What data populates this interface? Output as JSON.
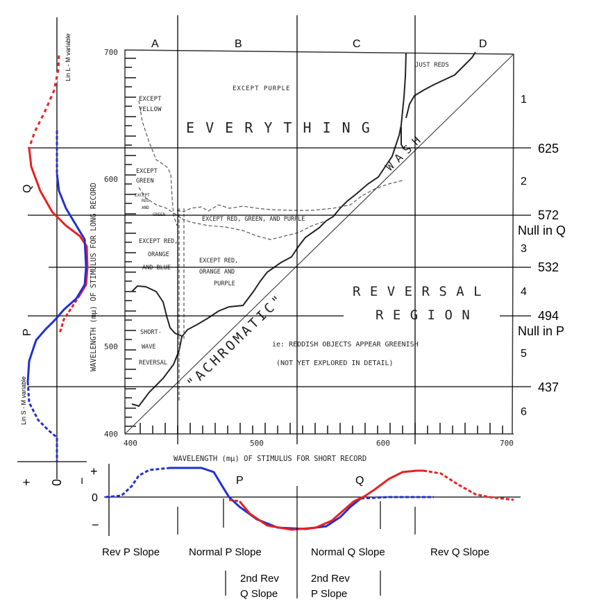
{
  "column_labels": [
    "A",
    "B",
    "C",
    "D"
  ],
  "row_numbers": [
    "1",
    "2",
    "3",
    "4",
    "5",
    "6"
  ],
  "boundaries": [
    {
      "value": "625",
      "note": ""
    },
    {
      "value": "572",
      "note": "Null in Q"
    },
    {
      "value": "532",
      "note": ""
    },
    {
      "value": "494",
      "note": "Null in P"
    },
    {
      "value": "437",
      "note": ""
    }
  ],
  "plot": {
    "xlabel": "WAVELENGTH (mμ) OF STIMULUS FOR SHORT RECORD",
    "ylabel": "WAVELENGTH (mμ) OF STIMULUS FOR LONG RECORD",
    "x_ticks": [
      "400",
      "500",
      "600",
      "700"
    ],
    "y_ticks": [
      "400",
      "500",
      "600",
      "700"
    ],
    "region_texts": {
      "except_purple": "EXCEPT   PURPLE",
      "everything": "E V E R Y T H I N G",
      "just_reds": "JUST REDS",
      "except_yellow": [
        "EXCEPT",
        "YELLOW"
      ],
      "except_green": [
        "EXCEPT",
        "GREEN"
      ],
      "except_red_and_green": [
        "EXCEPT",
        "RED",
        "AND",
        "GREEN"
      ],
      "except_rgp": "EXCEPT RED, GREEN, AND PURPLE",
      "except_rob": [
        "EXCEPT RED,",
        "ORANGE",
        "AND BLUE"
      ],
      "except_rop": [
        "EXCEPT RED,",
        "ORANGE AND",
        "PURPLE"
      ],
      "short_wave_reversal": [
        "SHORT-",
        "WAVE",
        "REVERSAL"
      ],
      "achromatic": "\"ACHROMATIC\"",
      "wash": "WASH",
      "reversal": "R E V E R S A L",
      "region": "R E G I O N",
      "note1": "ie: REDDISH OBJECTS APPEAR GREENISH",
      "note2": "(NOT YET EXPLORED IN DETAIL)"
    }
  },
  "left_panel": {
    "top_label": "Lin L - M variable",
    "bottom_label": "Lin S - M variable",
    "q_label": "Q",
    "p_label": "P",
    "axis_signs": [
      "+",
      "0",
      "−"
    ]
  },
  "bottom_panel": {
    "p_label": "P",
    "q_label": "Q",
    "axis_signs": [
      "+",
      "0",
      "−"
    ],
    "slope_labels": [
      "Rev P Slope",
      "Normal P Slope",
      "Normal Q Slope",
      "Rev Q Slope"
    ],
    "second_rev_q": [
      "2nd Rev",
      "Q Slope"
    ],
    "second_rev_p": [
      "2nd Rev",
      "P Slope"
    ]
  },
  "colors": {
    "red": "#e8201e",
    "blue": "#1f2fd6",
    "ink": "#222222"
  }
}
